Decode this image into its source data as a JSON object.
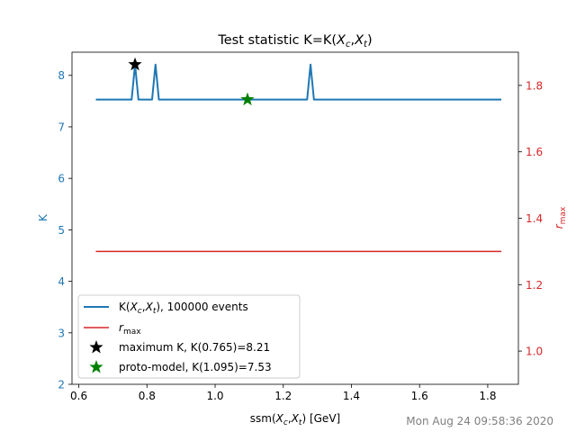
{
  "chart_data": {
    "type": "line",
    "title": "Test statistic K=K(X_c,X_t)",
    "xlabel": "ssm(X_c,X_t) [GeV]",
    "ylabel_left": "K",
    "ylabel_right": "r_max",
    "xlim": [
      0.58,
      1.89
    ],
    "ylim_left": [
      2,
      8.45
    ],
    "ylim_right": [
      0.9,
      1.9
    ],
    "x_ticks": [
      0.6,
      0.8,
      1.0,
      1.2,
      1.4,
      1.6,
      1.8
    ],
    "x_tick_labels": [
      "0.6",
      "0.8",
      "1.0",
      "1.2",
      "1.4",
      "1.6",
      "1.8"
    ],
    "y_left_ticks": [
      2,
      3,
      4,
      5,
      6,
      7,
      8
    ],
    "y_left_tick_labels": [
      "2",
      "3",
      "4",
      "5",
      "6",
      "7",
      "8"
    ],
    "y_right_ticks": [
      1.0,
      1.2,
      1.4,
      1.6,
      1.8
    ],
    "y_right_tick_labels": [
      "1.0",
      "1.2",
      "1.4",
      "1.6",
      "1.8"
    ],
    "colors": {
      "k": "#1f77b4",
      "rmax": "#d62728",
      "max_star": "#000000",
      "proto_star": "#008000"
    },
    "series": [
      {
        "name": "K(X_c,X_t), 100000 events",
        "axis": "left",
        "x": [
          0.65,
          0.755,
          0.765,
          0.775,
          0.815,
          0.825,
          0.835,
          1.27,
          1.28,
          1.29,
          1.84
        ],
        "y": [
          7.53,
          7.53,
          8.21,
          7.53,
          7.53,
          8.21,
          7.53,
          7.53,
          8.21,
          7.53,
          7.53
        ]
      },
      {
        "name": "r_max",
        "axis": "right",
        "x": [
          0.65,
          1.84
        ],
        "y": [
          1.3,
          1.3
        ]
      }
    ],
    "markers": [
      {
        "name": "maximum K, K(0.765)=8.21",
        "x": 0.765,
        "y": 8.21,
        "color": "#000000"
      },
      {
        "name": "proto-model, K(1.095)=7.53",
        "x": 1.095,
        "y": 7.53,
        "color": "#008000"
      }
    ],
    "legend_position": "lower-left",
    "grid": false
  },
  "labels": {
    "title_prefix": "Test statistic K=K(",
    "title_suffix": ")",
    "xlabel_prefix": "ssm(",
    "xlabel_suffix": ") [GeV]",
    "xc_base": "X",
    "xc_sub": "c",
    "xt_base": "X",
    "xt_sub": "t",
    "ylabel_left": "K",
    "rmax_base": "r",
    "rmax_sub": "max",
    "legend_k_prefix": "K(",
    "legend_k_suffix": "), 100000 events",
    "legend_max": "maximum K, K(0.765)=8.21",
    "legend_proto": "proto-model, K(1.095)=7.53",
    "timestamp": "Mon Aug 24 09:58:36 2020"
  }
}
